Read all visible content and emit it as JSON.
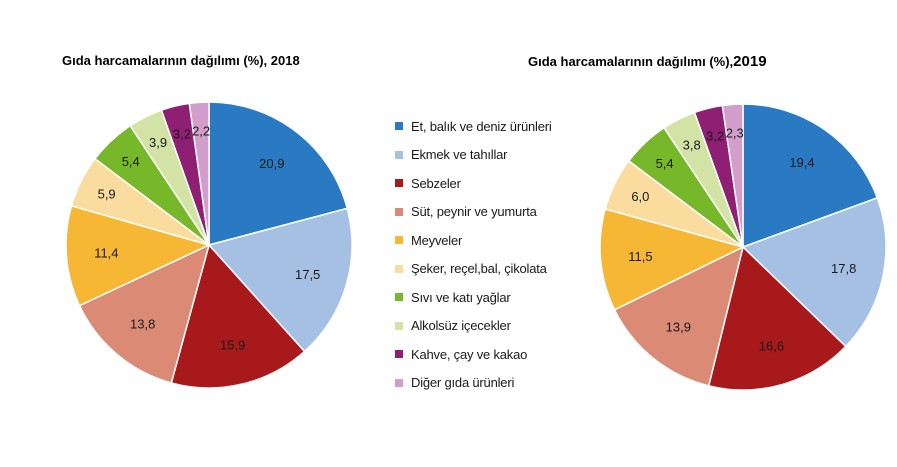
{
  "chart_data": [
    {
      "type": "pie",
      "title": "Gıda harcamalarının dağılımı (%), 2018",
      "categories": [
        "Et, balık ve deniz ürünleri",
        "Ekmek ve tahıllar",
        "Sebzeler",
        "Süt, peynir ve yumurta",
        "Meyveler",
        "Şeker, reçel,bal, çikolata",
        "Sıvı ve katı yağlar",
        "Alkolsüz içecekler",
        "Kahve, çay ve kakao",
        "Diğer gıda ürünleri"
      ],
      "values": [
        20.9,
        17.5,
        15.9,
        13.8,
        11.4,
        5.9,
        5.4,
        3.9,
        3.2,
        2.2
      ],
      "labels": [
        "20,9",
        "17,5",
        "15,9",
        "13,8",
        "11,4",
        "5,9",
        "5,4",
        "3,9",
        "3,2",
        "2,2"
      ]
    },
    {
      "type": "pie",
      "title_prefix": "Gıda harcamalarının dağılımı (%),",
      "title_year": "2019",
      "categories": [
        "Et, balık ve deniz ürünleri",
        "Ekmek ve tahıllar",
        "Sebzeler",
        "Süt, peynir ve yumurta",
        "Meyveler",
        "Şeker, reçel,bal, çikolata",
        "Sıvı ve katı yağlar",
        "Alkolsüz içecekler",
        "Kahve, çay ve kakao",
        "Diğer gıda ürünleri"
      ],
      "values": [
        19.4,
        17.8,
        16.6,
        13.9,
        11.5,
        6.0,
        5.4,
        3.8,
        3.2,
        2.3
      ],
      "labels": [
        "19,4",
        "17,8",
        "16,6",
        "13,9",
        "11,5",
        "6,0",
        "5,4",
        "3,8",
        "3,2",
        "2,3"
      ]
    }
  ],
  "legend": {
    "placement": "center",
    "items": [
      {
        "label": "Et, balık ve deniz ürünleri",
        "color": "#2a7ac3"
      },
      {
        "label": "Ekmek ve tahıllar",
        "color": "#a6c0e4"
      },
      {
        "label": "Sebzeler",
        "color": "#a8191c"
      },
      {
        "label": "Süt, peynir ve yumurta",
        "color": "#db8a76"
      },
      {
        "label": "Meyveler",
        "color": "#f6b834"
      },
      {
        "label": "Şeker, reçel,bal, çikolata",
        "color": "#fadc9f"
      },
      {
        "label": "Sıvı ve katı yağlar",
        "color": "#76b82a"
      },
      {
        "label": "Alkolsüz içecekler",
        "color": "#d3e3a6"
      },
      {
        "label": "Kahve, çay ve kakao",
        "color": "#8f1f73"
      },
      {
        "label": "Diğer gıda ürünleri",
        "color": "#d29ecc"
      }
    ]
  }
}
